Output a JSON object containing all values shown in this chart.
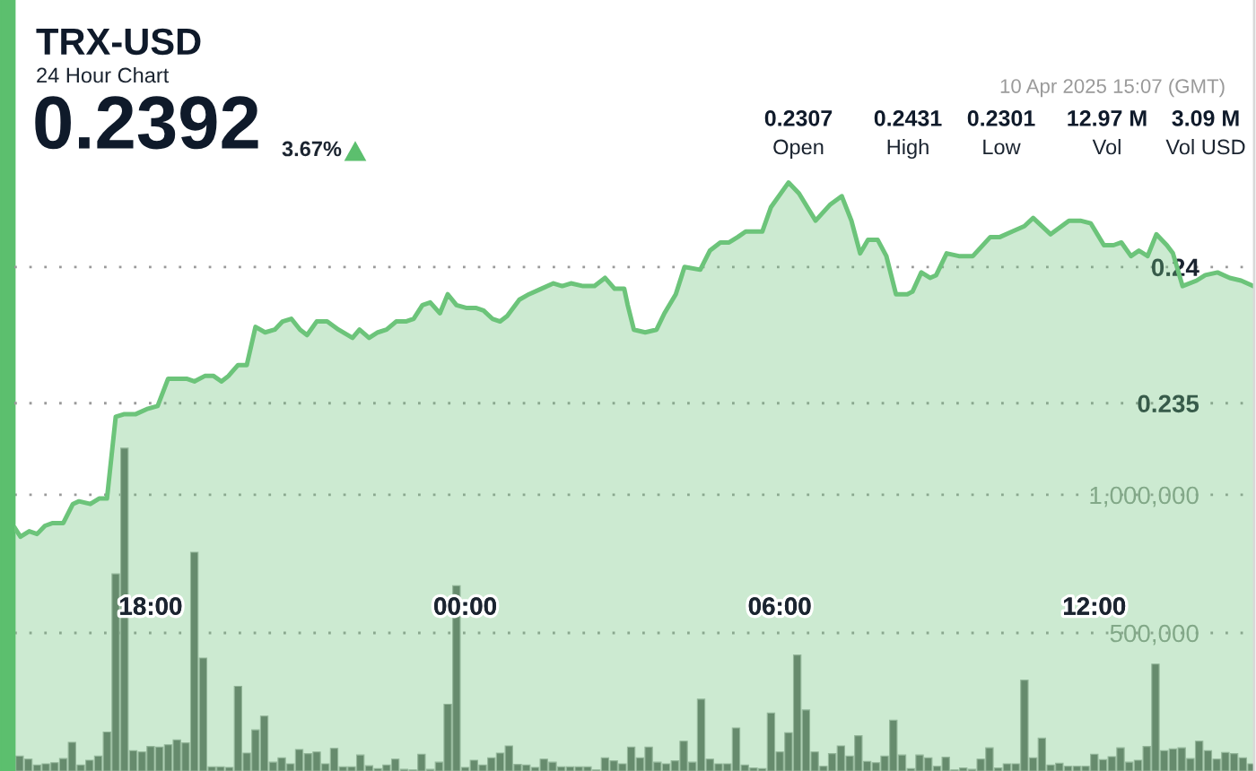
{
  "chart_data": {
    "type": "area",
    "title": "TRX-USD",
    "subtitle": "24 Hour Chart",
    "annotations": [
      "0.2392",
      "3.67%",
      "10 Apr 2025 15:07 (GMT)",
      "0.2307",
      "Open",
      "0.2431",
      "High",
      "0.2301",
      "Low",
      "12.97 M",
      "Vol",
      "3.09 M",
      "Vol USD"
    ],
    "xlim": [
      "2025-04-09T15:24",
      "2025-04-10T15:03"
    ],
    "xticks": [
      {
        "value": "2025-04-09T18:00",
        "label": "18:00"
      },
      {
        "value": "2025-04-10T00:00",
        "label": "00:00"
      },
      {
        "value": "2025-04-10T06:00",
        "label": "06:00"
      },
      {
        "value": "2025-04-10T12:00",
        "label": "12:00"
      }
    ],
    "ylim": [
      0.2215,
      0.2498
    ],
    "yticks": [
      0.235,
      0.24
    ],
    "y2lim": [
      0,
      2792000
    ],
    "y2ticks": [
      {
        "value": 500000,
        "label": "500,000"
      },
      {
        "value": 1000000,
        "label": "1,000,000"
      }
    ],
    "grid": "y",
    "series": [
      {
        "color": "#6cc47a",
        "x": [
          "2025-04-09T15:25",
          "2025-04-09T15:31",
          "2025-04-09T15:41",
          "2025-04-09T15:50",
          "2025-04-09T15:59",
          "2025-04-09T16:08",
          "2025-04-09T16:20",
          "2025-04-09T16:31",
          "2025-04-09T16:38",
          "2025-04-09T16:51",
          "2025-04-09T17:01",
          "2025-04-09T17:10",
          "2025-04-09T17:20",
          "2025-04-09T17:30",
          "2025-04-09T17:43",
          "2025-04-09T17:57",
          "2025-04-09T18:08",
          "2025-04-09T18:20",
          "2025-04-09T18:31",
          "2025-04-09T18:41",
          "2025-04-09T18:50",
          "2025-04-09T19:02",
          "2025-04-09T19:12",
          "2025-04-09T19:21",
          "2025-04-09T19:29",
          "2025-04-09T19:40",
          "2025-04-09T19:50",
          "2025-04-09T20:00",
          "2025-04-09T20:11",
          "2025-04-09T20:22",
          "2025-04-09T20:31",
          "2025-04-09T20:41",
          "2025-04-09T20:51",
          "2025-04-09T20:59",
          "2025-04-09T21:10",
          "2025-04-09T21:22",
          "2025-04-09T21:35",
          "2025-04-09T21:51",
          "2025-04-09T21:59",
          "2025-04-09T22:10",
          "2025-04-09T22:20",
          "2025-04-09T22:30",
          "2025-04-09T22:41",
          "2025-04-09T22:52",
          "2025-04-09T23:01",
          "2025-04-09T23:11",
          "2025-04-09T23:20",
          "2025-04-09T23:31",
          "2025-04-09T23:40",
          "2025-04-09T23:50",
          "2025-04-10T00:01",
          "2025-04-10T00:12",
          "2025-04-10T00:21",
          "2025-04-10T00:31",
          "2025-04-10T00:40",
          "2025-04-10T00:48",
          "2025-04-10T01:02",
          "2025-04-10T01:13",
          "2025-04-10T01:27",
          "2025-04-10T01:41",
          "2025-04-10T01:51",
          "2025-04-10T02:01",
          "2025-04-10T02:15",
          "2025-04-10T02:28",
          "2025-04-10T02:40",
          "2025-04-10T02:51",
          "2025-04-10T03:02",
          "2025-04-10T03:06",
          "2025-04-10T03:13",
          "2025-04-10T03:26",
          "2025-04-10T03:39",
          "2025-04-10T03:48",
          "2025-04-10T04:01",
          "2025-04-10T04:11",
          "2025-04-10T04:29",
          "2025-04-10T04:40",
          "2025-04-10T04:52",
          "2025-04-10T05:02",
          "2025-04-10T05:12",
          "2025-04-10T05:21",
          "2025-04-10T05:40",
          "2025-04-10T05:50",
          "2025-04-10T06:10",
          "2025-04-10T06:22",
          "2025-04-10T06:41",
          "2025-04-10T06:58",
          "2025-04-10T07:11",
          "2025-04-10T07:22",
          "2025-04-10T07:32",
          "2025-04-10T07:41",
          "2025-04-10T07:52",
          "2025-04-10T08:02",
          "2025-04-10T08:13",
          "2025-04-10T08:26",
          "2025-04-10T08:32",
          "2025-04-10T08:42",
          "2025-04-10T08:52",
          "2025-04-10T08:59",
          "2025-04-10T09:11",
          "2025-04-10T09:25",
          "2025-04-10T09:31",
          "2025-04-10T09:41",
          "2025-04-10T10:01",
          "2025-04-10T10:12",
          "2025-04-10T10:26",
          "2025-04-10T10:40",
          "2025-04-10T10:50",
          "2025-04-10T11:10",
          "2025-04-10T11:31",
          "2025-04-10T11:44",
          "2025-04-10T11:56",
          "2025-04-10T12:11",
          "2025-04-10T12:22",
          "2025-04-10T12:31",
          "2025-04-10T12:42",
          "2025-04-10T12:51",
          "2025-04-10T13:01",
          "2025-04-10T13:11",
          "2025-04-10T13:23",
          "2025-04-10T13:30",
          "2025-04-10T13:41",
          "2025-04-10T13:57",
          "2025-04-10T14:07",
          "2025-04-10T14:21",
          "2025-04-10T14:35",
          "2025-04-10T14:48",
          "2025-04-10T15:02"
        ],
        "values": [
          0.2304,
          0.2301,
          0.2303,
          0.2302,
          0.2305,
          0.2306,
          0.2306,
          0.2313,
          0.2314,
          0.2313,
          0.2315,
          0.2315,
          0.2345,
          0.2346,
          0.2346,
          0.2348,
          0.2349,
          0.2359,
          0.2359,
          0.2359,
          0.2358,
          0.236,
          0.236,
          0.2358,
          0.236,
          0.2364,
          0.2364,
          0.2378,
          0.2376,
          0.2377,
          0.238,
          0.2381,
          0.2377,
          0.2375,
          0.238,
          0.238,
          0.2377,
          0.2374,
          0.2377,
          0.2374,
          0.2376,
          0.2377,
          0.238,
          0.238,
          0.2381,
          0.2386,
          0.2387,
          0.2383,
          0.239,
          0.2386,
          0.2385,
          0.2385,
          0.2384,
          0.2381,
          0.238,
          0.2382,
          0.2388,
          0.239,
          0.2392,
          0.2394,
          0.2393,
          0.2394,
          0.2393,
          0.2393,
          0.2396,
          0.2392,
          0.2392,
          0.2386,
          0.2377,
          0.2376,
          0.2377,
          0.2383,
          0.239,
          0.24,
          0.2399,
          0.2406,
          0.2409,
          0.2409,
          0.2411,
          0.2413,
          0.2413,
          0.2422,
          0.2431,
          0.2427,
          0.2417,
          0.2423,
          0.2426,
          0.2417,
          0.2405,
          0.241,
          0.241,
          0.2404,
          0.239,
          0.239,
          0.2391,
          0.2398,
          0.2396,
          0.2397,
          0.2405,
          0.2404,
          0.2404,
          0.2404,
          0.2411,
          0.2411,
          0.2413,
          0.2415,
          0.2418,
          0.2412,
          0.2417,
          0.2417,
          0.2416,
          0.2408,
          0.2408,
          0.2409,
          0.2404,
          0.2406,
          0.2404,
          0.2412,
          0.2408,
          0.2405,
          0.2393,
          0.2395,
          0.2397,
          0.2398,
          0.2396,
          0.2395,
          0.2393
        ]
      },
      {
        "type": "bar",
        "axis": "y2",
        "color": "#636d66",
        "x": [
          "2025-04-09T15:30",
          "2025-04-09T15:40",
          "2025-04-09T15:50",
          "2025-04-09T16:00",
          "2025-04-09T16:10",
          "2025-04-09T16:20",
          "2025-04-09T16:30",
          "2025-04-09T16:40",
          "2025-04-09T16:50",
          "2025-04-09T17:00",
          "2025-04-09T17:10",
          "2025-04-09T17:20",
          "2025-04-09T17:30",
          "2025-04-09T17:40",
          "2025-04-09T17:50",
          "2025-04-09T18:00",
          "2025-04-09T18:10",
          "2025-04-09T18:20",
          "2025-04-09T18:30",
          "2025-04-09T18:40",
          "2025-04-09T18:50",
          "2025-04-09T19:00",
          "2025-04-09T19:10",
          "2025-04-09T19:20",
          "2025-04-09T19:30",
          "2025-04-09T19:40",
          "2025-04-09T19:50",
          "2025-04-09T20:00",
          "2025-04-09T20:10",
          "2025-04-09T20:20",
          "2025-04-09T20:30",
          "2025-04-09T20:40",
          "2025-04-09T20:50",
          "2025-04-09T21:00",
          "2025-04-09T21:10",
          "2025-04-09T21:20",
          "2025-04-09T21:30",
          "2025-04-09T21:40",
          "2025-04-09T21:50",
          "2025-04-09T22:00",
          "2025-04-09T22:10",
          "2025-04-09T22:20",
          "2025-04-09T22:30",
          "2025-04-09T22:40",
          "2025-04-09T22:50",
          "2025-04-09T23:00",
          "2025-04-09T23:10",
          "2025-04-09T23:20",
          "2025-04-09T23:30",
          "2025-04-09T23:40",
          "2025-04-09T23:50",
          "2025-04-10T00:00",
          "2025-04-10T00:10",
          "2025-04-10T00:20",
          "2025-04-10T00:30",
          "2025-04-10T00:40",
          "2025-04-10T00:50",
          "2025-04-10T01:00",
          "2025-04-10T01:10",
          "2025-04-10T01:20",
          "2025-04-10T01:30",
          "2025-04-10T01:40",
          "2025-04-10T01:50",
          "2025-04-10T02:00",
          "2025-04-10T02:10",
          "2025-04-10T02:20",
          "2025-04-10T02:30",
          "2025-04-10T02:40",
          "2025-04-10T02:50",
          "2025-04-10T03:00",
          "2025-04-10T03:10",
          "2025-04-10T03:20",
          "2025-04-10T03:30",
          "2025-04-10T03:40",
          "2025-04-10T03:50",
          "2025-04-10T04:00",
          "2025-04-10T04:10",
          "2025-04-10T04:20",
          "2025-04-10T04:30",
          "2025-04-10T04:40",
          "2025-04-10T04:50",
          "2025-04-10T05:00",
          "2025-04-10T05:10",
          "2025-04-10T05:20",
          "2025-04-10T05:30",
          "2025-04-10T05:40",
          "2025-04-10T05:50",
          "2025-04-10T06:00",
          "2025-04-10T06:10",
          "2025-04-10T06:20",
          "2025-04-10T06:30",
          "2025-04-10T06:40",
          "2025-04-10T06:50",
          "2025-04-10T07:00",
          "2025-04-10T07:10",
          "2025-04-10T07:20",
          "2025-04-10T07:30",
          "2025-04-10T07:40",
          "2025-04-10T07:50",
          "2025-04-10T08:00",
          "2025-04-10T08:10",
          "2025-04-10T08:20",
          "2025-04-10T08:30",
          "2025-04-10T08:40",
          "2025-04-10T08:50",
          "2025-04-10T09:00",
          "2025-04-10T09:10",
          "2025-04-10T09:20",
          "2025-04-10T09:30",
          "2025-04-10T09:40",
          "2025-04-10T09:50",
          "2025-04-10T10:00",
          "2025-04-10T10:10",
          "2025-04-10T10:20",
          "2025-04-10T10:30",
          "2025-04-10T10:40",
          "2025-04-10T10:50",
          "2025-04-10T11:00",
          "2025-04-10T11:10",
          "2025-04-10T11:20",
          "2025-04-10T11:30",
          "2025-04-10T11:40",
          "2025-04-10T11:50",
          "2025-04-10T12:00",
          "2025-04-10T12:10",
          "2025-04-10T12:20",
          "2025-04-10T12:30",
          "2025-04-10T12:40",
          "2025-04-10T12:50",
          "2025-04-10T13:00",
          "2025-04-10T13:10",
          "2025-04-10T13:20",
          "2025-04-10T13:30",
          "2025-04-10T13:40",
          "2025-04-10T13:50",
          "2025-04-10T14:00",
          "2025-04-10T14:10",
          "2025-04-10T14:20",
          "2025-04-10T14:30",
          "2025-04-10T14:40",
          "2025-04-10T14:50",
          "2025-04-10T15:00"
        ],
        "values": [
          54000,
          43000,
          22000,
          26000,
          30000,
          45000,
          104000,
          22000,
          39000,
          54000,
          141000,
          714000,
          1169000,
          74000,
          69000,
          89000,
          87000,
          95000,
          113000,
          102000,
          792000,
          409000,
          15000,
          15000,
          13000,
          307000,
          65000,
          149000,
          199000,
          32000,
          48000,
          26000,
          78000,
          63000,
          69000,
          26000,
          82000,
          15000,
          15000,
          58000,
          19000,
          9000,
          22000,
          43000,
          6000,
          4000,
          61000,
          6000,
          32000,
          242000,
          671000,
          13000,
          39000,
          22000,
          48000,
          65000,
          91000,
          24000,
          22000,
          13000,
          43000,
          32000,
          15000,
          15000,
          15000,
          15000,
          4000,
          48000,
          37000,
          26000,
          87000,
          48000,
          87000,
          32000,
          26000,
          37000,
          108000,
          32000,
          260000,
          43000,
          26000,
          26000,
          156000,
          22000,
          11000,
          9000,
          210000,
          69000,
          139000,
          420000,
          221000,
          69000,
          17000,
          63000,
          91000,
          54000,
          128000,
          35000,
          30000,
          54000,
          184000,
          58000,
          9000,
          58000,
          48000,
          17000,
          50000,
          4000,
          11000,
          6000,
          43000,
          84000,
          11000,
          26000,
          26000,
          329000,
          48000,
          119000,
          22000,
          28000,
          17000,
          17000,
          17000,
          61000,
          41000,
          52000,
          84000,
          32000,
          39000,
          89000,
          387000,
          74000,
          80000,
          84000,
          45000,
          108000,
          74000,
          43000,
          67000,
          63000,
          48000,
          26000
        ]
      }
    ]
  }
}
